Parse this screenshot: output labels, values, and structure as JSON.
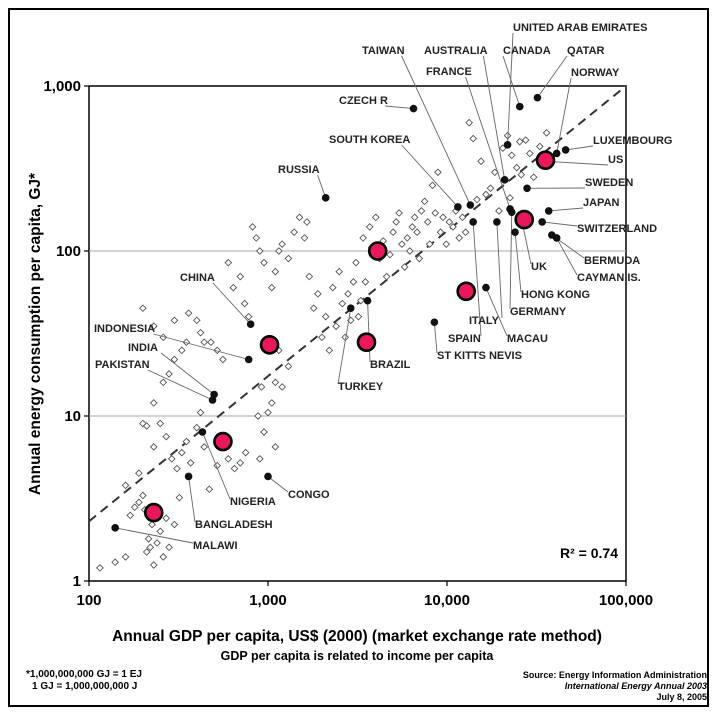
{
  "chart_data": {
    "type": "scatter",
    "xlabel": "Annual GDP per capita, US$ (2000)  (market exchange rate method)",
    "subtitle": "GDP per capita is related to income per capita",
    "ylabel": "Annual energy consumption per capita, GJ*",
    "x_scale": "log",
    "y_scale": "log",
    "xlim": [
      100,
      100000
    ],
    "ylim": [
      1,
      1000
    ],
    "x_ticks": [
      {
        "value": 100,
        "label": "100"
      },
      {
        "value": 1000,
        "label": "1,000"
      },
      {
        "value": 10000,
        "label": "10,000"
      },
      {
        "value": 100000,
        "label": "100,000"
      }
    ],
    "y_ticks": [
      {
        "value": 1,
        "label": "1"
      },
      {
        "value": 10,
        "label": "10"
      },
      {
        "value": 100,
        "label": "100"
      },
      {
        "value": 1000,
        "label": "1,000"
      }
    ],
    "grid": "horizontal",
    "annotation": "R² = 0.74",
    "trendline": {
      "style": "dashed",
      "points": [
        [
          100,
          2.3
        ],
        [
          100000,
          1000
        ]
      ]
    },
    "labeled_points": [
      {
        "name": "UNITED ARAB EMIRATES",
        "x": 21800,
        "y": 440
      },
      {
        "name": "QATAR",
        "x": 32000,
        "y": 850
      },
      {
        "name": "CANADA",
        "x": 25500,
        "y": 750
      },
      {
        "name": "NORWAY",
        "x": 41000,
        "y": 390
      },
      {
        "name": "TAIWAN",
        "x": 13500,
        "y": 190
      },
      {
        "name": "AUSTRALIA",
        "x": 21000,
        "y": 270
      },
      {
        "name": "FRANCE",
        "x": 22500,
        "y": 180
      },
      {
        "name": "CZECH R",
        "x": 6500,
        "y": 730
      },
      {
        "name": "SOUTH KOREA",
        "x": 11500,
        "y": 185
      },
      {
        "name": "LUXEMBOURG",
        "x": 46000,
        "y": 410
      },
      {
        "name": "US",
        "x": 35000,
        "y": 350
      },
      {
        "name": "SWEDEN",
        "x": 28000,
        "y": 240
      },
      {
        "name": "JAPAN",
        "x": 37000,
        "y": 175
      },
      {
        "name": "SWITZERLAND",
        "x": 34000,
        "y": 150
      },
      {
        "name": "BERMUDA",
        "x": 38500,
        "y": 125
      },
      {
        "name": "CAYMAN IS.",
        "x": 41000,
        "y": 120
      },
      {
        "name": "UK",
        "x": 26000,
        "y": 158
      },
      {
        "name": "HONG KONG",
        "x": 24000,
        "y": 130
      },
      {
        "name": "GERMANY",
        "x": 23000,
        "y": 172
      },
      {
        "name": "MACAU",
        "x": 16500,
        "y": 60
      },
      {
        "name": "ITALY",
        "x": 19000,
        "y": 150
      },
      {
        "name": "SPAIN",
        "x": 14000,
        "y": 150
      },
      {
        "name": "ST KITTS NEVIS",
        "x": 8500,
        "y": 37
      },
      {
        "name": "RUSSIA",
        "x": 2100,
        "y": 210
      },
      {
        "name": "BRAZIL",
        "x": 3600,
        "y": 50
      },
      {
        "name": "TURKEY",
        "x": 2900,
        "y": 45
      },
      {
        "name": "CHINA",
        "x": 800,
        "y": 36
      },
      {
        "name": "INDONESIA",
        "x": 780,
        "y": 22
      },
      {
        "name": "INDIA",
        "x": 500,
        "y": 13.5
      },
      {
        "name": "PAKISTAN",
        "x": 490,
        "y": 12.5
      },
      {
        "name": "NIGERIA",
        "x": 430,
        "y": 8
      },
      {
        "name": "BANGLADESH",
        "x": 360,
        "y": 4.3
      },
      {
        "name": "CONGO",
        "x": 1000,
        "y": 4.3
      },
      {
        "name": "MALAWI",
        "x": 140,
        "y": 2.1
      }
    ],
    "highlight_points": [
      {
        "x": 230,
        "y": 2.6
      },
      {
        "x": 560,
        "y": 7
      },
      {
        "x": 1020,
        "y": 27
      },
      {
        "x": 3550,
        "y": 28
      },
      {
        "x": 4100,
        "y": 100
      },
      {
        "x": 12800,
        "y": 57
      },
      {
        "x": 27000,
        "y": 155
      },
      {
        "x": 35500,
        "y": 355
      }
    ],
    "unlabeled_points": [
      [
        115,
        1.2
      ],
      [
        140,
        1.3
      ],
      [
        160,
        1.4
      ],
      [
        170,
        2.5
      ],
      [
        180,
        2.8
      ],
      [
        190,
        3.0
      ],
      [
        200,
        3.3
      ],
      [
        205,
        2.7
      ],
      [
        210,
        1.5
      ],
      [
        215,
        1.8
      ],
      [
        220,
        1.6
      ],
      [
        225,
        2.2
      ],
      [
        230,
        1.25
      ],
      [
        240,
        1.7
      ],
      [
        250,
        2.0
      ],
      [
        260,
        1.4
      ],
      [
        270,
        2.4
      ],
      [
        280,
        1.6
      ],
      [
        300,
        2.2
      ],
      [
        320,
        3.2
      ],
      [
        160,
        3.8
      ],
      [
        190,
        4.5
      ],
      [
        230,
        6.5
      ],
      [
        250,
        9.0
      ],
      [
        270,
        7.5
      ],
      [
        290,
        5.5
      ],
      [
        310,
        4.8
      ],
      [
        330,
        6.0
      ],
      [
        350,
        7.0
      ],
      [
        370,
        5.2
      ],
      [
        400,
        8.5
      ],
      [
        420,
        10.5
      ],
      [
        440,
        6.5
      ],
      [
        470,
        3.6
      ],
      [
        520,
        5.0
      ],
      [
        600,
        5.5
      ],
      [
        650,
        4.8
      ],
      [
        700,
        5.2
      ],
      [
        750,
        6.0
      ],
      [
        900,
        5.5
      ],
      [
        1100,
        6.5
      ],
      [
        950,
        8.0
      ],
      [
        1000,
        10.5
      ],
      [
        880,
        10.0
      ],
      [
        920,
        15
      ],
      [
        1050,
        12
      ],
      [
        1100,
        16
      ],
      [
        1200,
        15
      ],
      [
        1300,
        20
      ],
      [
        1150,
        25
      ],
      [
        200,
        9
      ],
      [
        210,
        8.7
      ],
      [
        230,
        12
      ],
      [
        260,
        16
      ],
      [
        280,
        18
      ],
      [
        300,
        22
      ],
      [
        330,
        25
      ],
      [
        360,
        42
      ],
      [
        400,
        38
      ],
      [
        440,
        28
      ],
      [
        200,
        45
      ],
      [
        230,
        35
      ],
      [
        260,
        30
      ],
      [
        300,
        38
      ],
      [
        350,
        28
      ],
      [
        420,
        32
      ],
      [
        480,
        28
      ],
      [
        520,
        25
      ],
      [
        560,
        22
      ],
      [
        600,
        85
      ],
      [
        640,
        60
      ],
      [
        700,
        70
      ],
      [
        740,
        48
      ],
      [
        780,
        40
      ],
      [
        820,
        140
      ],
      [
        860,
        120
      ],
      [
        900,
        100
      ],
      [
        950,
        85
      ],
      [
        1050,
        60
      ],
      [
        1100,
        75
      ],
      [
        1150,
        100
      ],
      [
        1200,
        110
      ],
      [
        1300,
        90
      ],
      [
        1400,
        130
      ],
      [
        1500,
        160
      ],
      [
        1600,
        120
      ],
      [
        1650,
        150
      ],
      [
        1700,
        70
      ],
      [
        1800,
        45
      ],
      [
        1900,
        55
      ],
      [
        2000,
        30
      ],
      [
        2100,
        40
      ],
      [
        2200,
        25
      ],
      [
        2300,
        60
      ],
      [
        2400,
        35
      ],
      [
        2500,
        75
      ],
      [
        2600,
        48
      ],
      [
        2700,
        30
      ],
      [
        2800,
        55
      ],
      [
        2900,
        38
      ],
      [
        3000,
        65
      ],
      [
        3100,
        85
      ],
      [
        3200,
        40
      ],
      [
        3300,
        50
      ],
      [
        3400,
        120
      ],
      [
        3500,
        65
      ],
      [
        3700,
        140
      ],
      [
        3800,
        105
      ],
      [
        4000,
        160
      ],
      [
        4200,
        90
      ],
      [
        4400,
        115
      ],
      [
        4600,
        70
      ],
      [
        4800,
        95
      ],
      [
        5000,
        130
      ],
      [
        5200,
        150
      ],
      [
        5400,
        170
      ],
      [
        5600,
        110
      ],
      [
        5800,
        80
      ],
      [
        6000,
        120
      ],
      [
        6200,
        100
      ],
      [
        6400,
        140
      ],
      [
        6600,
        160
      ],
      [
        6800,
        130
      ],
      [
        7000,
        90
      ],
      [
        7200,
        175
      ],
      [
        7500,
        200
      ],
      [
        7800,
        150
      ],
      [
        8000,
        110
      ],
      [
        8300,
        250
      ],
      [
        8600,
        170
      ],
      [
        8900,
        300
      ],
      [
        9200,
        130
      ],
      [
        9500,
        160
      ],
      [
        9900,
        110
      ],
      [
        10300,
        150
      ],
      [
        10800,
        140
      ],
      [
        11200,
        175
      ],
      [
        11700,
        120
      ],
      [
        12200,
        160
      ],
      [
        12700,
        130
      ],
      [
        13300,
        600
      ],
      [
        14000,
        480
      ],
      [
        14700,
        205
      ],
      [
        15500,
        350
      ],
      [
        16500,
        220
      ],
      [
        17500,
        240
      ],
      [
        18500,
        300
      ],
      [
        19500,
        175
      ],
      [
        20500,
        420
      ],
      [
        21800,
        500
      ],
      [
        23000,
        380
      ],
      [
        24500,
        320
      ],
      [
        26000,
        290
      ],
      [
        27500,
        470
      ],
      [
        29000,
        390
      ],
      [
        30500,
        280
      ],
      [
        33000,
        430
      ],
      [
        36000,
        520
      ],
      [
        25500,
        460
      ],
      [
        22500,
        210
      ]
    ]
  },
  "footnote": {
    "line1": "*1,000,000,000 GJ = 1 EJ",
    "line2": "1 GJ = 1,000,000,000 J"
  },
  "source": {
    "line1": "Source: Energy Information Administration",
    "line2": "International Energy Annual 2003",
    "line3": "July 8, 2005"
  }
}
